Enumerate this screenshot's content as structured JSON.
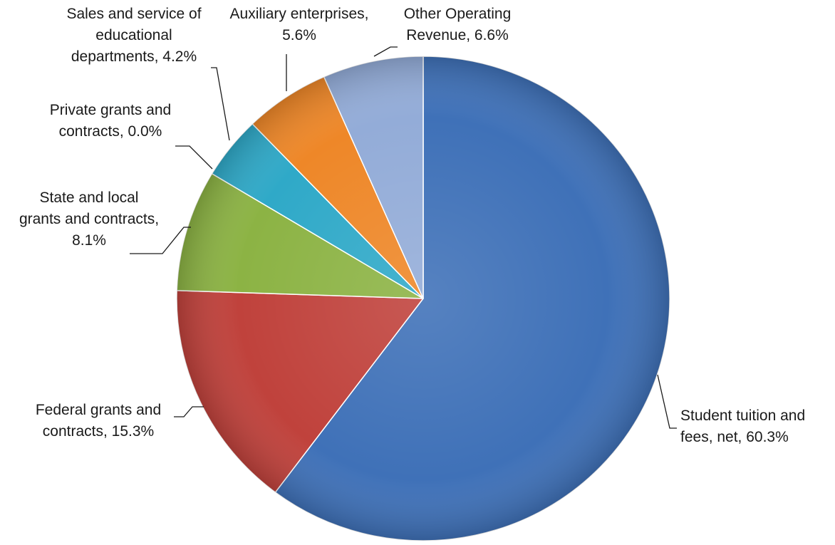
{
  "chart_data": {
    "type": "pie",
    "title": "",
    "slices": [
      {
        "name": "Student tuition and fees, net",
        "value": 60.3,
        "color": "#3f71b8",
        "label_lines": [
          "Student tuition and",
          "fees, net, 60.3%"
        ]
      },
      {
        "name": "Federal grants and contracts",
        "value": 15.3,
        "color": "#c0423c",
        "label_lines": [
          "Federal grants and",
          "contracts, 15.3%"
        ]
      },
      {
        "name": "State and local grants and contracts",
        "value": 8.1,
        "color": "#8cb344",
        "label_lines": [
          "State and local",
          "grants and contracts,",
          "8.1%"
        ]
      },
      {
        "name": "Private grants and contracts",
        "value": 0.0,
        "color": "#7a5ea8",
        "label_lines": [
          "Private grants and",
          "contracts, 0.0%"
        ]
      },
      {
        "name": "Sales and service of educational departments",
        "value": 4.2,
        "color": "#2fa9c8",
        "label_lines": [
          "Sales and service of",
          "educational",
          "departments, 4.2%"
        ]
      },
      {
        "name": "Auxiliary enterprises",
        "value": 5.6,
        "color": "#ee8728",
        "label_lines": [
          "Auxiliary enterprises,",
          "5.6%"
        ]
      },
      {
        "name": "Other Operating Revenue",
        "value": 6.6,
        "color": "#93acd8",
        "label_lines": [
          "Other Operating",
          "Revenue, 6.6%"
        ]
      }
    ],
    "start_angle": "12 o'clock",
    "direction": "clockwise",
    "legend": "none",
    "data_labels": "outside with leader lines"
  }
}
